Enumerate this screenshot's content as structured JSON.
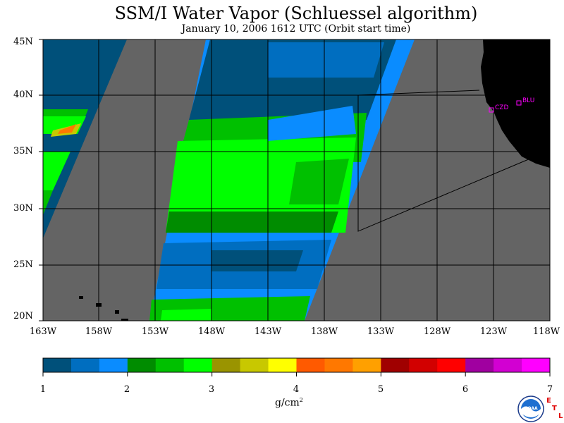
{
  "title": "SSM/I Water Vapor (Schluessel algorithm)",
  "subtitle": "January 10, 2006  1612 UTC  (Orbit start time)",
  "lat_labels": [
    "45N",
    "40N",
    "35N",
    "30N",
    "25N",
    "20N"
  ],
  "lon_labels": [
    "163W",
    "158W",
    "153W",
    "148W",
    "143W",
    "138W",
    "133W",
    "128W",
    "123W",
    "118W"
  ],
  "colorbar": {
    "colors": [
      "#00507a",
      "#006ec0",
      "#0a8cff",
      "#008c00",
      "#00c000",
      "#00ff00",
      "#9a9400",
      "#c8c800",
      "#ffff00",
      "#ff5a00",
      "#ff7800",
      "#ffa000",
      "#a00000",
      "#d20000",
      "#ff0000",
      "#a000a0",
      "#d200d2",
      "#ff00ff"
    ],
    "tick_labels": [
      "1",
      "2",
      "3",
      "4",
      "5",
      "6",
      "7"
    ],
    "units": "g/cm",
    "units_exponent": "2"
  },
  "stations": [
    {
      "label": "CZD"
    },
    {
      "label": "BLU"
    }
  ],
  "map_colors": {
    "no_data": "#646464",
    "land": "#000000",
    "station": "#ff00ff"
  },
  "logo_text": "NOAA",
  "etl": [
    "E",
    "T",
    "L"
  ]
}
